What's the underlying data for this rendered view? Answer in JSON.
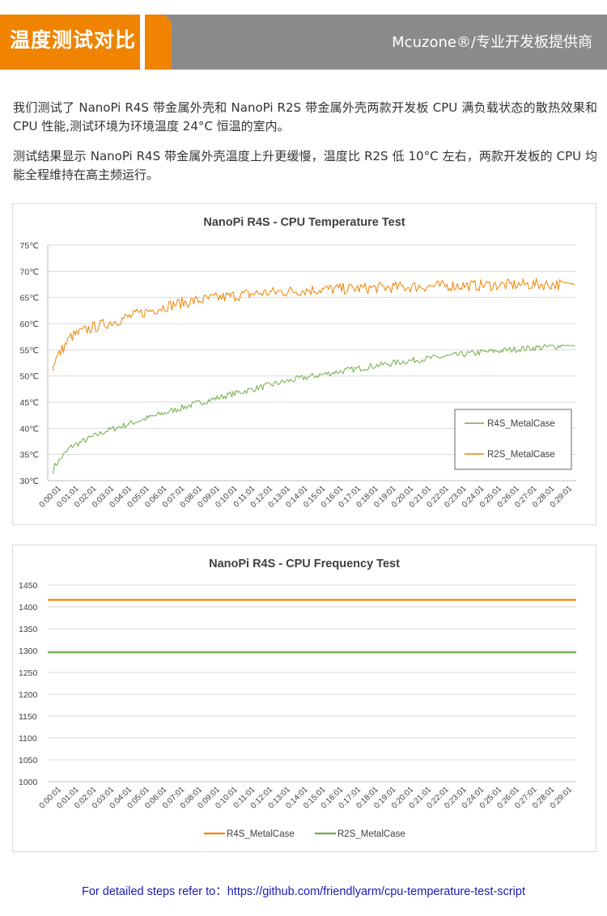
{
  "header": {
    "title": "温度测试对比",
    "brand": "Mcuzone®/专业开发板提供商"
  },
  "intro": {
    "p1": "我们测试了 NanoPi R4S 带金属外壳和 NanoPi R2S 带金属外壳两款开发板 CPU 满负载状态的散热效果和 CPU 性能,测试环境为环境温度 24°C 恒温的室内。",
    "p2": "测试结果显示 NanoPi R4S 带金属外壳温度上升更缓慢，温度比 R2S 低 10°C 左右，两款开发板的 CPU 均能全程维持在高主频运行。"
  },
  "footer": {
    "text": "For detailed steps refer to：https://github.com/friendlyarm/cpu-temperature-test-script"
  },
  "colors": {
    "orange": "#f08300",
    "green": "#70ad47",
    "header_gray": "#8a8a8a",
    "link": "#1a1ab8"
  },
  "chart_data": [
    {
      "type": "line",
      "title": "NanoPi R4S - CPU Temperature Test",
      "xlabel": "",
      "ylabel": "",
      "ylim": [
        30,
        75
      ],
      "yticks": [
        "30℃",
        "35℃",
        "40℃",
        "45℃",
        "50℃",
        "55℃",
        "60℃",
        "65℃",
        "70℃",
        "75℃"
      ],
      "ytick_values": [
        30,
        35,
        40,
        45,
        50,
        55,
        60,
        65,
        70,
        75
      ],
      "categories": [
        "0:00:01",
        "0:01:01",
        "0:02:01",
        "0:03:01",
        "0:04:01",
        "0:05:01",
        "0:06:01",
        "0:07:01",
        "0:08:01",
        "0:09:01",
        "0:10:01",
        "0:11:01",
        "0:12:01",
        "0:13:01",
        "0:14:01",
        "0:15:01",
        "0:16:01",
        "0:17:01",
        "0:18:01",
        "0:19:01",
        "0:20:01",
        "0:21:01",
        "0:22:01",
        "0:23:01",
        "0:24:01",
        "0:25:01",
        "0:26:01",
        "0:27:01",
        "0:28:01",
        "0:29:01"
      ],
      "grid": true,
      "legend": "inside-bottom-right",
      "series": [
        {
          "name": "R4S_MetalCase",
          "color": "#70ad47",
          "values": [
            32.5,
            36.5,
            38.0,
            39.5,
            40.5,
            41.6,
            42.6,
            43.6,
            44.6,
            45.5,
            46.4,
            47.2,
            48.0,
            48.8,
            49.5,
            50.1,
            50.7,
            51.2,
            51.8,
            52.3,
            52.8,
            53.2,
            53.6,
            54.0,
            54.4,
            54.7,
            55.0,
            55.3,
            55.5,
            55.8
          ]
        },
        {
          "name": "R2S_MetalCase",
          "color": "#f08300",
          "values": [
            52.5,
            57.5,
            59.0,
            60.0,
            61.0,
            62.0,
            63.0,
            63.8,
            64.3,
            64.8,
            65.2,
            65.6,
            65.9,
            66.1,
            66.3,
            66.5,
            66.6,
            66.7,
            66.8,
            66.9,
            67.0,
            67.1,
            67.2,
            67.3,
            67.3,
            67.4,
            67.4,
            67.5,
            67.5,
            67.5
          ]
        }
      ]
    },
    {
      "type": "line",
      "title": "NanoPi R4S - CPU Frequency Test",
      "xlabel": "",
      "ylabel": "",
      "ylim": [
        1000,
        1450
      ],
      "yticks": [
        "1000",
        "1050",
        "1100",
        "1150",
        "1200",
        "1250",
        "1300",
        "1350",
        "1400",
        "1450"
      ],
      "ytick_values": [
        1000,
        1050,
        1100,
        1150,
        1200,
        1250,
        1300,
        1350,
        1400,
        1450
      ],
      "categories": [
        "0:00:01",
        "0:01:01",
        "0:02:01",
        "0:03:01",
        "0:04:01",
        "0:05:01",
        "0:06:01",
        "0:07:01",
        "0:08:01",
        "0:09:01",
        "0:10:01",
        "0:11:01",
        "0:12:01",
        "0:13:01",
        "0:14:01",
        "0:15:01",
        "0:16:01",
        "0:17:01",
        "0:18:01",
        "0:19:01",
        "0:20:01",
        "0:21:01",
        "0:22:01",
        "0:23:01",
        "0:24:01",
        "0:25:01",
        "0:26:01",
        "0:27:01",
        "0:28:01",
        "0:29:01"
      ],
      "grid": true,
      "legend": "bottom",
      "series": [
        {
          "name": "R4S_MetalCase",
          "color": "#f08300",
          "values": [
            1416,
            1416,
            1416,
            1416,
            1416,
            1416,
            1416,
            1416,
            1416,
            1416,
            1416,
            1416,
            1416,
            1416,
            1416,
            1416,
            1416,
            1416,
            1416,
            1416,
            1416,
            1416,
            1416,
            1416,
            1416,
            1416,
            1416,
            1416,
            1416,
            1416
          ]
        },
        {
          "name": "R2S_MetalCase",
          "color": "#70ad47",
          "values": [
            1296,
            1296,
            1296,
            1296,
            1296,
            1296,
            1296,
            1296,
            1296,
            1296,
            1296,
            1296,
            1296,
            1296,
            1296,
            1296,
            1296,
            1296,
            1296,
            1296,
            1296,
            1296,
            1296,
            1296,
            1296,
            1296,
            1296,
            1296,
            1296,
            1296
          ]
        }
      ]
    }
  ]
}
